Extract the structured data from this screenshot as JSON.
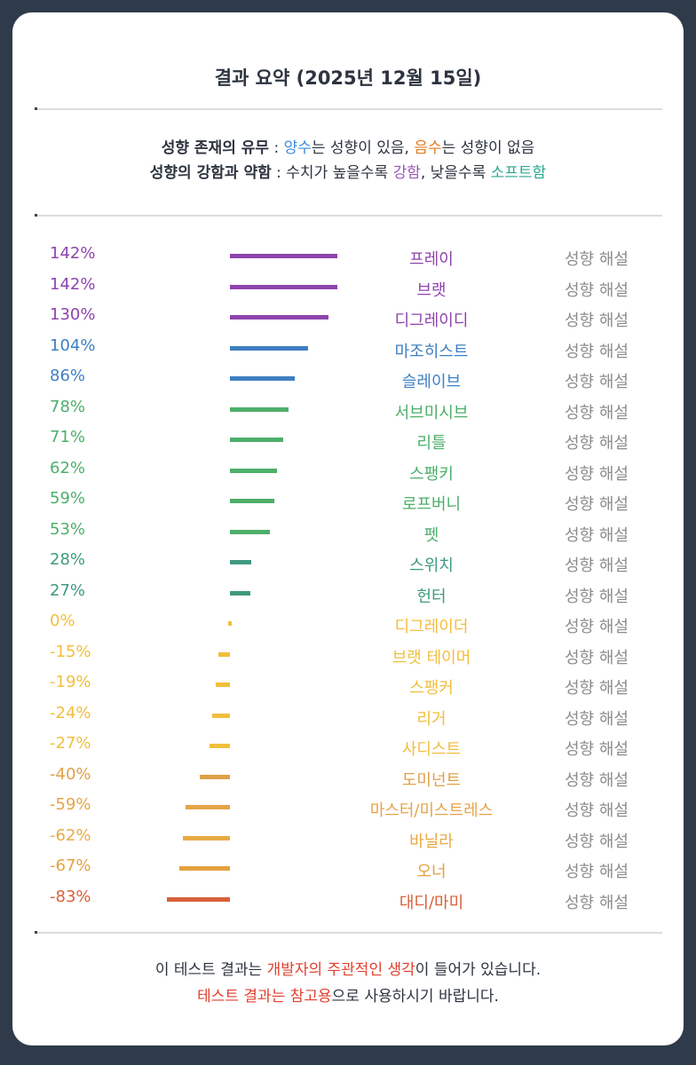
{
  "title": "결과 요약 (2025년 12월 15일)",
  "legend": {
    "line1": [
      {
        "text": "성향 존재의 유무",
        "color": "#2d3440",
        "bold": true
      },
      {
        "text": " : ",
        "color": "#2d3440",
        "bold": false
      },
      {
        "text": "양수",
        "color": "#3a8dde",
        "bold": false
      },
      {
        "text": "는 성향이 있음, ",
        "color": "#2d3440",
        "bold": false
      },
      {
        "text": "음수",
        "color": "#e07a1f",
        "bold": false
      },
      {
        "text": "는 성향이 없음",
        "color": "#2d3440",
        "bold": false
      }
    ],
    "line2": [
      {
        "text": "성향의 강함과 약함",
        "color": "#2d3440",
        "bold": true
      },
      {
        "text": " : 수치가 높을수록 ",
        "color": "#2d3440",
        "bold": false
      },
      {
        "text": "강함",
        "color": "#9b59b6",
        "bold": false
      },
      {
        "text": ", 낮을수록 ",
        "color": "#2d3440",
        "bold": false
      },
      {
        "text": "소프트함",
        "color": "#27a98f",
        "bold": false
      }
    ]
  },
  "explain_label": "성향 해설",
  "chart_data": {
    "type": "bar",
    "orientation": "horizontal-diverging",
    "categories": [
      "프레이",
      "브랫",
      "디그레이디",
      "마조히스트",
      "슬레이브",
      "서브미시브",
      "리틀",
      "스팽키",
      "로프버니",
      "펫",
      "스위치",
      "헌터",
      "디그레이더",
      "브랫 테이머",
      "스팽커",
      "리거",
      "사디스트",
      "도미넌트",
      "마스터/미스트레스",
      "바닐라",
      "오너",
      "대디/마미"
    ],
    "values": [
      142,
      142,
      130,
      104,
      86,
      78,
      71,
      62,
      59,
      53,
      28,
      27,
      0,
      -15,
      -19,
      -24,
      -27,
      -40,
      -59,
      -62,
      -67,
      -83
    ],
    "labels": [
      "142%",
      "142%",
      "130%",
      "104%",
      "86%",
      "78%",
      "71%",
      "62%",
      "59%",
      "53%",
      "28%",
      "27%",
      "0%",
      "-15%",
      "-19%",
      "-24%",
      "-27%",
      "-40%",
      "-59%",
      "-62%",
      "-67%",
      "-83%"
    ],
    "colors": [
      "#8e44ad",
      "#8e44ad",
      "#8e44ad",
      "#3e7fc1",
      "#3e7fc1",
      "#4caf6a",
      "#4caf6a",
      "#4caf6a",
      "#4caf6a",
      "#4caf6a",
      "#3f9a80",
      "#3f9a80",
      "#f2be3c",
      "#f2be3c",
      "#f2be3c",
      "#f2be3c",
      "#f2be3c",
      "#e0a048",
      "#e5a447",
      "#e8aa45",
      "#e3a23f",
      "#d9603a"
    ],
    "unit": "%"
  },
  "footer": {
    "line1": [
      {
        "text": "이 테스트 결과는 ",
        "color": "#2d3440"
      },
      {
        "text": "개발자의 주관적인 생각",
        "color": "#e0402f"
      },
      {
        "text": "이 들어가 있습니다.",
        "color": "#2d3440"
      }
    ],
    "line2": [
      {
        "text": "테스트 결과는 참고용",
        "color": "#e0402f"
      },
      {
        "text": "으로 사용하시기 바랍니다.",
        "color": "#2d3440"
      }
    ]
  }
}
